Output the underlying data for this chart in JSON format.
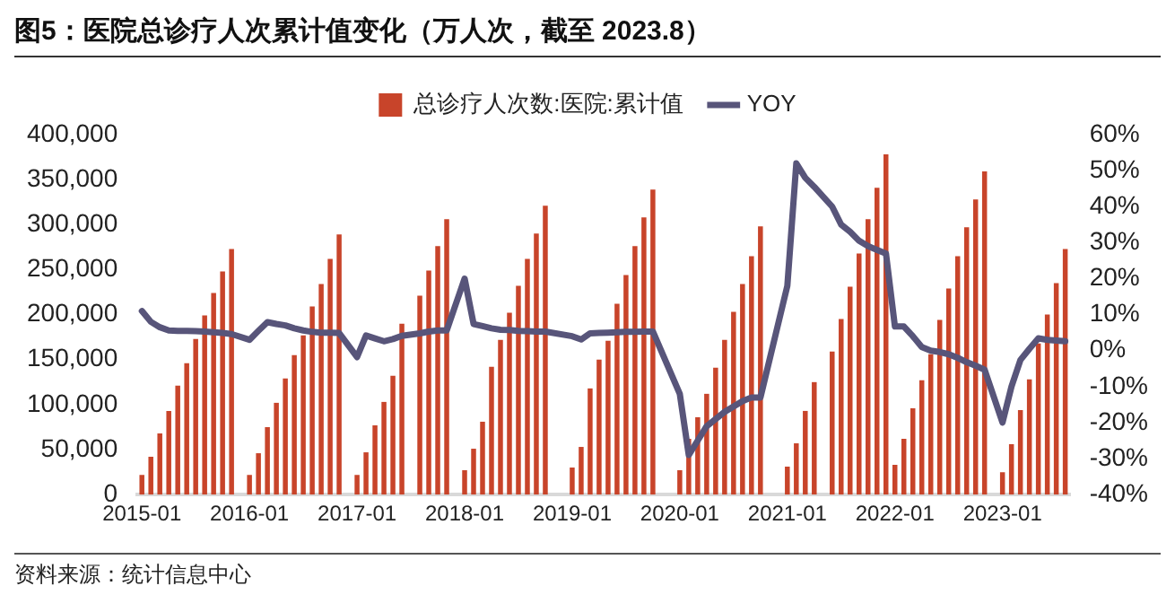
{
  "chart_data": {
    "type": "bar",
    "title": "图5：医院总诊疗人次累计值变化（万人次，截至 2023.8）",
    "categories": [
      "2015-01",
      null,
      null,
      null,
      null,
      null,
      null,
      null,
      null,
      null,
      null,
      null,
      "2016-01",
      null,
      null,
      null,
      null,
      null,
      null,
      null,
      null,
      null,
      null,
      null,
      "2017-01",
      null,
      null,
      null,
      null,
      null,
      null,
      null,
      null,
      null,
      null,
      null,
      "2018-01",
      null,
      null,
      null,
      null,
      null,
      null,
      null,
      null,
      null,
      null,
      null,
      "2019-01",
      null,
      null,
      null,
      null,
      null,
      null,
      null,
      null,
      null,
      null,
      null,
      "2020-01",
      null,
      null,
      null,
      null,
      null,
      null,
      null,
      null,
      null,
      null,
      null,
      "2021-01",
      null,
      null,
      null,
      null,
      null,
      null,
      null,
      null,
      null,
      null,
      null,
      "2022-01",
      null,
      null,
      null,
      null,
      null,
      null,
      null,
      null,
      null,
      null,
      null,
      "2023-01",
      null,
      null,
      null,
      null,
      null,
      null,
      null
    ],
    "series": [
      {
        "name": "总诊疗人次数:医院:累计值",
        "color": "#c8442a",
        "values": [
          22000,
          42000,
          68000,
          93000,
          121000,
          146000,
          173000,
          199000,
          224000,
          248000,
          273000,
          null,
          22000,
          46000,
          75000,
          102000,
          129000,
          155000,
          177000,
          209000,
          234000,
          262000,
          289000,
          null,
          22000,
          47000,
          77000,
          103000,
          132000,
          190000,
          null,
          221000,
          249000,
          276000,
          306000,
          null,
          27000,
          51000,
          81000,
          142000,
          172000,
          202000,
          232000,
          262000,
          290000,
          321000,
          null,
          null,
          30000,
          53000,
          118000,
          150000,
          171000,
          212000,
          244000,
          276000,
          308000,
          339000,
          null,
          null,
          27000,
          62000,
          86000,
          112000,
          141000,
          172000,
          203000,
          234000,
          265000,
          298000,
          null,
          null,
          31000,
          57000,
          93000,
          125000,
          null,
          159000,
          195000,
          231000,
          268000,
          306000,
          341000,
          378000,
          33000,
          62000,
          96000,
          127000,
          156000,
          194000,
          229000,
          265000,
          297000,
          328000,
          359000,
          null,
          25000,
          56000,
          94000,
          128000,
          168000,
          200000,
          235000,
          273000
        ]
      },
      {
        "name": "YOY",
        "type": "line",
        "axis": "y2",
        "color": "#58557a",
        "values": [
          11,
          8,
          6.5,
          5.6,
          5.5,
          5.5,
          5.4,
          5.3,
          5.1,
          4.9,
          4.6,
          null,
          3,
          5.5,
          7.9,
          7.4,
          7,
          6.2,
          5.6,
          5.2,
          5,
          5,
          4.9,
          null,
          -1.8,
          4.2,
          3.4,
          2.6,
          3.2,
          4.1,
          null,
          4.8,
          5.3,
          5.6,
          5.6,
          null,
          20,
          7.4,
          6.8,
          6.2,
          5.8,
          5.7,
          5.5,
          5.4,
          5.3,
          5.3,
          null,
          null,
          4,
          3.1,
          4.8,
          4.9,
          5,
          5.1,
          5.2,
          5.2,
          5.3,
          5.3,
          null,
          null,
          -12,
          -29,
          -25,
          -21,
          -19,
          -17,
          -15.5,
          -14,
          -13,
          -13,
          null,
          null,
          18,
          52,
          48,
          45.5,
          null,
          40,
          35,
          33,
          30.5,
          29,
          28,
          27,
          6.7,
          6.7,
          4,
          1,
          0,
          -0.4,
          -1,
          -2,
          -3.2,
          -4.2,
          -5.3,
          null,
          -20,
          -10,
          -2.6,
          0.5,
          3.4,
          3,
          2.8,
          2.6
        ]
      }
    ],
    "ylim": [
      0,
      400000
    ],
    "yticks": [
      {
        "value": 0,
        "label": "0"
      },
      {
        "value": 50000,
        "label": "50,000"
      },
      {
        "value": 100000,
        "label": "100,000"
      },
      {
        "value": 150000,
        "label": "150,000"
      },
      {
        "value": 200000,
        "label": "200,000"
      },
      {
        "value": 250000,
        "label": "250,000"
      },
      {
        "value": 300000,
        "label": "300,000"
      },
      {
        "value": 350000,
        "label": "350,000"
      },
      {
        "value": 400000,
        "label": "400,000"
      }
    ],
    "y2lim": [
      -40,
      60
    ],
    "y2ticks": [
      {
        "value": -40,
        "label": "-40%"
      },
      {
        "value": -30,
        "label": "-30%"
      },
      {
        "value": -20,
        "label": "-20%"
      },
      {
        "value": -10,
        "label": "-10%"
      },
      {
        "value": 0,
        "label": "0%"
      },
      {
        "value": 10,
        "label": "10%"
      },
      {
        "value": 20,
        "label": "20%"
      },
      {
        "value": 30,
        "label": "30%"
      },
      {
        "value": 40,
        "label": "40%"
      },
      {
        "value": 50,
        "label": "50%"
      },
      {
        "value": 60,
        "label": "60%"
      }
    ],
    "legend": "top",
    "grid": false,
    "marker": "none",
    "line_style": "solid",
    "annotations": [
      "资料来源：统计信息中心"
    ]
  }
}
